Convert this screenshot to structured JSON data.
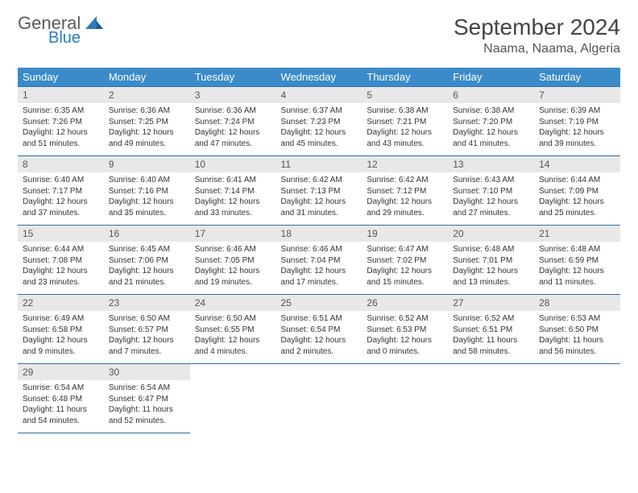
{
  "logo": {
    "general": "General",
    "blue": "Blue"
  },
  "title": "September 2024",
  "location": "Naama, Naama, Algeria",
  "colors": {
    "header_bg": "#3b8bc9",
    "header_text": "#ffffff",
    "row_border": "#2f6fa8",
    "daynum_bg": "#e8e8e8",
    "logo_blue": "#2b7bbf",
    "logo_gray": "#5a5a5a",
    "body_text": "#333333"
  },
  "weekdays": [
    "Sunday",
    "Monday",
    "Tuesday",
    "Wednesday",
    "Thursday",
    "Friday",
    "Saturday"
  ],
  "weeks": [
    [
      {
        "n": "1",
        "sr": "6:35 AM",
        "ss": "7:26 PM",
        "dl": "12 hours and 51 minutes."
      },
      {
        "n": "2",
        "sr": "6:36 AM",
        "ss": "7:25 PM",
        "dl": "12 hours and 49 minutes."
      },
      {
        "n": "3",
        "sr": "6:36 AM",
        "ss": "7:24 PM",
        "dl": "12 hours and 47 minutes."
      },
      {
        "n": "4",
        "sr": "6:37 AM",
        "ss": "7:23 PM",
        "dl": "12 hours and 45 minutes."
      },
      {
        "n": "5",
        "sr": "6:38 AM",
        "ss": "7:21 PM",
        "dl": "12 hours and 43 minutes."
      },
      {
        "n": "6",
        "sr": "6:38 AM",
        "ss": "7:20 PM",
        "dl": "12 hours and 41 minutes."
      },
      {
        "n": "7",
        "sr": "6:39 AM",
        "ss": "7:19 PM",
        "dl": "12 hours and 39 minutes."
      }
    ],
    [
      {
        "n": "8",
        "sr": "6:40 AM",
        "ss": "7:17 PM",
        "dl": "12 hours and 37 minutes."
      },
      {
        "n": "9",
        "sr": "6:40 AM",
        "ss": "7:16 PM",
        "dl": "12 hours and 35 minutes."
      },
      {
        "n": "10",
        "sr": "6:41 AM",
        "ss": "7:14 PM",
        "dl": "12 hours and 33 minutes."
      },
      {
        "n": "11",
        "sr": "6:42 AM",
        "ss": "7:13 PM",
        "dl": "12 hours and 31 minutes."
      },
      {
        "n": "12",
        "sr": "6:42 AM",
        "ss": "7:12 PM",
        "dl": "12 hours and 29 minutes."
      },
      {
        "n": "13",
        "sr": "6:43 AM",
        "ss": "7:10 PM",
        "dl": "12 hours and 27 minutes."
      },
      {
        "n": "14",
        "sr": "6:44 AM",
        "ss": "7:09 PM",
        "dl": "12 hours and 25 minutes."
      }
    ],
    [
      {
        "n": "15",
        "sr": "6:44 AM",
        "ss": "7:08 PM",
        "dl": "12 hours and 23 minutes."
      },
      {
        "n": "16",
        "sr": "6:45 AM",
        "ss": "7:06 PM",
        "dl": "12 hours and 21 minutes."
      },
      {
        "n": "17",
        "sr": "6:46 AM",
        "ss": "7:05 PM",
        "dl": "12 hours and 19 minutes."
      },
      {
        "n": "18",
        "sr": "6:46 AM",
        "ss": "7:04 PM",
        "dl": "12 hours and 17 minutes."
      },
      {
        "n": "19",
        "sr": "6:47 AM",
        "ss": "7:02 PM",
        "dl": "12 hours and 15 minutes."
      },
      {
        "n": "20",
        "sr": "6:48 AM",
        "ss": "7:01 PM",
        "dl": "12 hours and 13 minutes."
      },
      {
        "n": "21",
        "sr": "6:48 AM",
        "ss": "6:59 PM",
        "dl": "12 hours and 11 minutes."
      }
    ],
    [
      {
        "n": "22",
        "sr": "6:49 AM",
        "ss": "6:58 PM",
        "dl": "12 hours and 9 minutes."
      },
      {
        "n": "23",
        "sr": "6:50 AM",
        "ss": "6:57 PM",
        "dl": "12 hours and 7 minutes."
      },
      {
        "n": "24",
        "sr": "6:50 AM",
        "ss": "6:55 PM",
        "dl": "12 hours and 4 minutes."
      },
      {
        "n": "25",
        "sr": "6:51 AM",
        "ss": "6:54 PM",
        "dl": "12 hours and 2 minutes."
      },
      {
        "n": "26",
        "sr": "6:52 AM",
        "ss": "6:53 PM",
        "dl": "12 hours and 0 minutes."
      },
      {
        "n": "27",
        "sr": "6:52 AM",
        "ss": "6:51 PM",
        "dl": "11 hours and 58 minutes."
      },
      {
        "n": "28",
        "sr": "6:53 AM",
        "ss": "6:50 PM",
        "dl": "11 hours and 56 minutes."
      }
    ],
    [
      {
        "n": "29",
        "sr": "6:54 AM",
        "ss": "6:48 PM",
        "dl": "11 hours and 54 minutes."
      },
      {
        "n": "30",
        "sr": "6:54 AM",
        "ss": "6:47 PM",
        "dl": "11 hours and 52 minutes."
      },
      null,
      null,
      null,
      null,
      null
    ]
  ],
  "labels": {
    "sunrise": "Sunrise: ",
    "sunset": "Sunset: ",
    "daylight": "Daylight: "
  }
}
